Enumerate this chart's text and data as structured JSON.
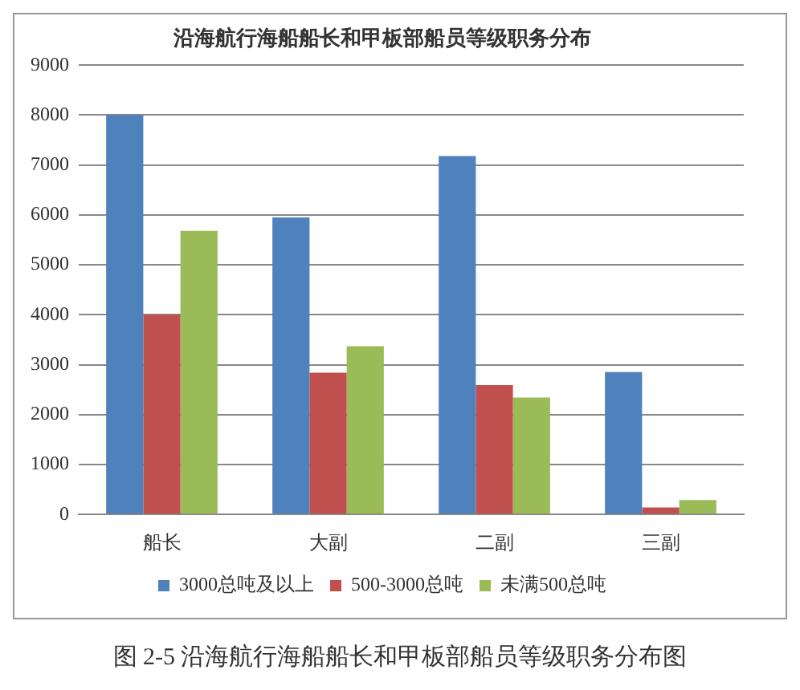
{
  "chart_data": {
    "type": "bar",
    "title": "沿海航行海船船长和甲板部船员等级职务分布",
    "categories": [
      "船长",
      "大副",
      "二副",
      "三副"
    ],
    "series": [
      {
        "name": "3000总吨及以上",
        "color": "#4f81bd",
        "values": [
          8000,
          5950,
          7180,
          2850
        ]
      },
      {
        "name": "500-3000总吨",
        "color": "#c0504d",
        "values": [
          4000,
          2840,
          2590,
          140
        ]
      },
      {
        "name": "未满500总吨",
        "color": "#9bbb59",
        "values": [
          5680,
          3370,
          2340,
          290
        ]
      }
    ],
    "ylim": [
      0,
      9000
    ],
    "yticks": [
      0,
      1000,
      2000,
      3000,
      4000,
      5000,
      6000,
      7000,
      8000,
      9000
    ],
    "grid": "y",
    "legend": "bottom",
    "annotations": [
      "图 2-5 沿海航行海船船长和甲板部船员等级职务分布图"
    ]
  }
}
